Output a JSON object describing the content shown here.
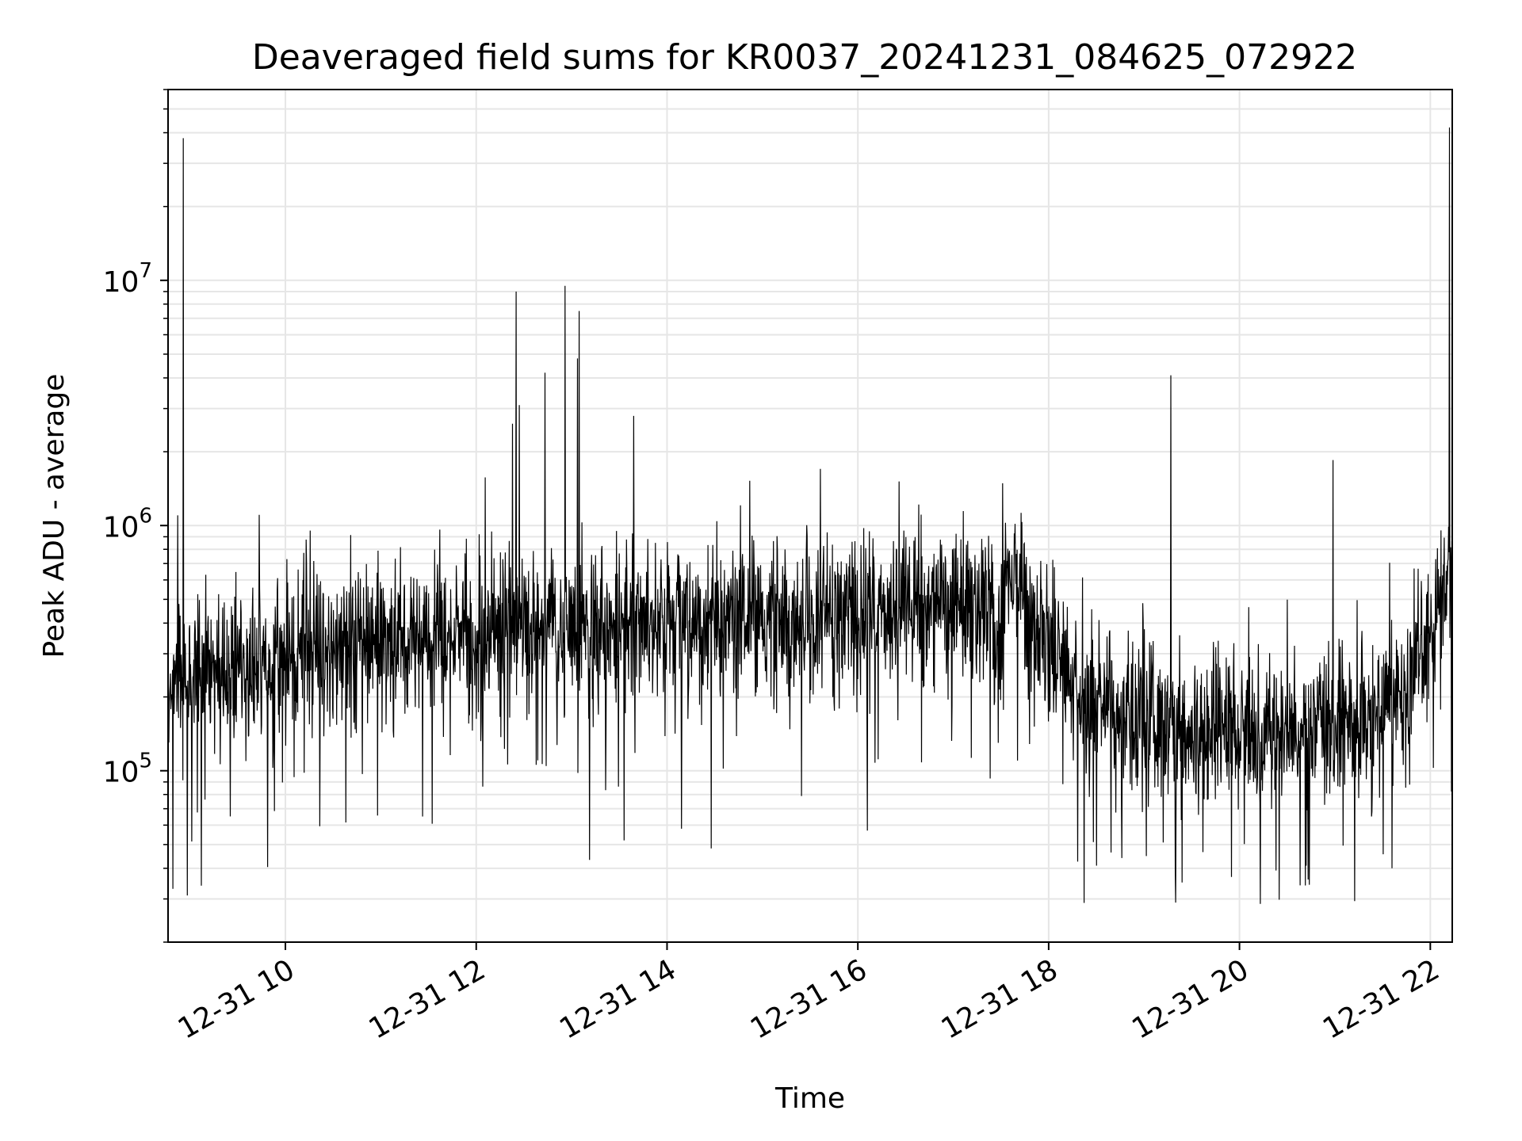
{
  "chart_data": {
    "type": "line",
    "title": "Deaveraged field sums for KR0037_20241231_084625_072922",
    "xlabel": "Time",
    "ylabel": "Peak ADU - average",
    "yscale": "log",
    "ylim": [
      20000,
      60000000
    ],
    "xlim_hours": [
      8.77,
      22.23
    ],
    "grid": true,
    "line_color": "#000000",
    "grid_color": "#e6e6e6",
    "x_ticks": [
      {
        "label": "12-31 10",
        "hour": 10
      },
      {
        "label": "12-31 12",
        "hour": 12
      },
      {
        "label": "12-31 14",
        "hour": 14
      },
      {
        "label": "12-31 16",
        "hour": 16
      },
      {
        "label": "12-31 18",
        "hour": 18
      },
      {
        "label": "12-31 20",
        "hour": 20
      },
      {
        "label": "12-31 22",
        "hour": 22
      }
    ],
    "y_ticks": [
      {
        "base": "10",
        "exp": "5",
        "value": 100000
      },
      {
        "base": "10",
        "exp": "6",
        "value": 1000000
      },
      {
        "base": "10",
        "exp": "7",
        "value": 10000000
      }
    ],
    "baseline": [
      [
        8.77,
        250000
      ],
      [
        9.0,
        250000
      ],
      [
        9.5,
        270000
      ],
      [
        10.0,
        290000
      ],
      [
        10.5,
        310000
      ],
      [
        11.0,
        330000
      ],
      [
        11.5,
        350000
      ],
      [
        12.0,
        370000
      ],
      [
        12.5,
        380000
      ],
      [
        13.0,
        390000
      ],
      [
        13.5,
        400000
      ],
      [
        14.0,
        410000
      ],
      [
        14.5,
        410000
      ],
      [
        15.0,
        420000
      ],
      [
        15.5,
        430000
      ],
      [
        16.0,
        450000
      ],
      [
        16.5,
        470000
      ],
      [
        17.0,
        500000
      ],
      [
        17.3,
        480000
      ],
      [
        17.45,
        300000
      ],
      [
        17.55,
        700000
      ],
      [
        17.8,
        450000
      ],
      [
        18.1,
        300000
      ],
      [
        18.3,
        190000
      ],
      [
        18.6,
        180000
      ],
      [
        19.0,
        170000
      ],
      [
        19.5,
        150000
      ],
      [
        20.0,
        140000
      ],
      [
        20.5,
        145000
      ],
      [
        21.0,
        150000
      ],
      [
        21.5,
        180000
      ],
      [
        21.8,
        230000
      ],
      [
        22.0,
        380000
      ],
      [
        22.23,
        700000
      ]
    ],
    "spikes": [
      {
        "hour": 8.93,
        "value": 38000000
      },
      {
        "hour": 8.87,
        "value": 1100000
      },
      {
        "hour": 12.38,
        "value": 2600000
      },
      {
        "hour": 12.42,
        "value": 9000000
      },
      {
        "hour": 12.45,
        "value": 3100000
      },
      {
        "hour": 12.72,
        "value": 4200000
      },
      {
        "hour": 12.93,
        "value": 9500000
      },
      {
        "hour": 13.06,
        "value": 4800000
      },
      {
        "hour": 13.08,
        "value": 7500000
      },
      {
        "hour": 13.65,
        "value": 2800000
      },
      {
        "hour": 19.28,
        "value": 4100000
      },
      {
        "hour": 20.98,
        "value": 1850000
      },
      {
        "hour": 22.2,
        "value": 42000000
      }
    ],
    "dips": [
      {
        "hour": 8.82,
        "value": 33000
      },
      {
        "hour": 8.97,
        "value": 31000
      },
      {
        "hour": 9.12,
        "value": 34000
      },
      {
        "hour": 13.55,
        "value": 52000
      },
      {
        "hour": 14.15,
        "value": 58000
      },
      {
        "hour": 16.1,
        "value": 57000
      },
      {
        "hour": 18.5,
        "value": 41000
      },
      {
        "hour": 19.33,
        "value": 29000
      },
      {
        "hour": 19.4,
        "value": 35000
      },
      {
        "hour": 20.7,
        "value": 41000
      },
      {
        "hour": 20.72,
        "value": 36000
      },
      {
        "hour": 21.6,
        "value": 40000
      }
    ]
  }
}
